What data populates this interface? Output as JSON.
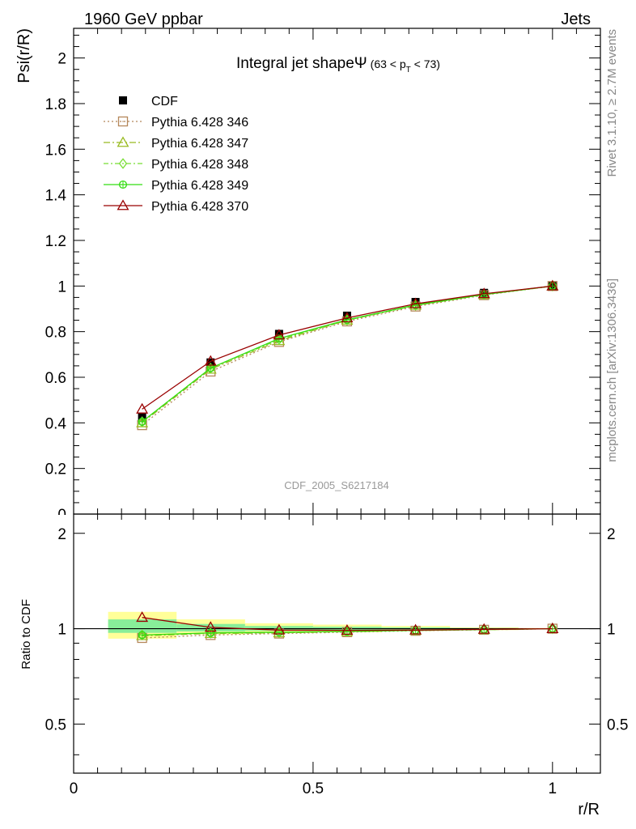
{
  "header": {
    "left": "1960 GeV ppbar",
    "right": "Jets"
  },
  "side_labels": {
    "rivet": "Rivet 3.1.10, ≥ 2.7M events",
    "mcplots": "mcplots.cern.ch [arXiv:1306.3436]"
  },
  "watermark": "CDF_2005_S6217184",
  "title": {
    "main": "Integral jet shape",
    "psi": "Ψ",
    "range_pre": "(63 < p",
    "range_sub": "T",
    "range_post": " < 73)"
  },
  "chart_data": [
    {
      "type": "line",
      "panel": "main",
      "ylabel": "Psi(r/R)",
      "xlim": [
        0,
        1.1
      ],
      "ylim": [
        0,
        2.13
      ],
      "yticks": [
        0,
        0.2,
        0.4,
        0.6,
        0.8,
        1,
        1.2,
        1.4,
        1.6,
        1.8,
        2
      ],
      "ytick_labels": [
        "0",
        "0.2",
        "0.4",
        "0.6",
        "0.8",
        "1",
        "1.2",
        "1.4",
        "1.6",
        "1.8",
        "2"
      ],
      "x": [
        0.143,
        0.286,
        0.429,
        0.571,
        0.714,
        0.857,
        1.0
      ],
      "series": [
        {
          "name": "CDF",
          "color": "#000000",
          "marker": "filled-square",
          "values": [
            0.425,
            0.665,
            0.79,
            0.87,
            0.93,
            0.97,
            1.0
          ]
        },
        {
          "name": "Pythia 6.428 346",
          "color": "#b5875a",
          "dash": "2,3",
          "marker": "open-square",
          "values": [
            0.39,
            0.625,
            0.755,
            0.845,
            0.91,
            0.96,
            1.0
          ]
        },
        {
          "name": "Pythia 6.428 347",
          "color": "#99bb22",
          "dash": "8,3,2,3",
          "marker": "open-triangle",
          "values": [
            0.4,
            0.635,
            0.76,
            0.85,
            0.915,
            0.962,
            1.0
          ]
        },
        {
          "name": "Pythia 6.428 348",
          "color": "#77dd33",
          "dash": "6,3,2,3",
          "marker": "open-diamond",
          "values": [
            0.405,
            0.64,
            0.765,
            0.85,
            0.915,
            0.962,
            1.0
          ]
        },
        {
          "name": "Pythia 6.428 349",
          "color": "#33dd11",
          "dash": "",
          "marker": "open-circle-cross",
          "values": [
            0.405,
            0.64,
            0.77,
            0.852,
            0.917,
            0.963,
            1.0
          ]
        },
        {
          "name": "Pythia 6.428 370",
          "color": "#990000",
          "dash": "",
          "marker": "open-triangle",
          "values": [
            0.46,
            0.67,
            0.785,
            0.86,
            0.922,
            0.966,
            1.0
          ]
        }
      ]
    },
    {
      "type": "line",
      "panel": "ratio",
      "ylabel": "Ratio to CDF",
      "xlabel": "r/R",
      "xlim": [
        0,
        1.1
      ],
      "ylim": [
        0.35,
        2.3
      ],
      "yticks": [
        0.5,
        1,
        2
      ],
      "ytick_labels": [
        "0.5",
        "1",
        "2"
      ],
      "xticks": [
        0,
        0.5,
        1
      ],
      "xtick_labels": [
        "0",
        "0.5",
        "1"
      ],
      "x": [
        0.143,
        0.286,
        0.429,
        0.571,
        0.714,
        0.857,
        1.0
      ],
      "bands": {
        "x_edges": [
          0.072,
          0.215,
          0.358,
          0.5,
          0.643,
          0.786,
          0.929,
          1.0
        ],
        "yellow": [
          [
            0.93,
            1.13
          ],
          [
            0.96,
            1.07
          ],
          [
            0.97,
            1.04
          ],
          [
            0.975,
            1.03
          ],
          [
            0.985,
            1.02
          ],
          [
            0.99,
            1.01
          ],
          [
            0.995,
            1.005
          ]
        ],
        "green": [
          [
            0.97,
            1.07
          ],
          [
            0.98,
            1.035
          ],
          [
            0.985,
            1.02
          ],
          [
            0.99,
            1.015
          ],
          [
            0.993,
            1.01
          ],
          [
            0.995,
            1.005
          ],
          [
            0.998,
            1.002
          ]
        ]
      },
      "series": [
        {
          "name": "Pythia 6.428 346",
          "color": "#b5875a",
          "dash": "2,3",
          "marker": "open-square",
          "values": [
            0.935,
            0.955,
            0.965,
            0.975,
            0.985,
            0.992,
            1.0
          ]
        },
        {
          "name": "Pythia 6.428 347",
          "color": "#99bb22",
          "dash": "8,3,2,3",
          "marker": "open-triangle",
          "values": [
            0.95,
            0.965,
            0.97,
            0.978,
            0.987,
            0.993,
            1.0
          ]
        },
        {
          "name": "Pythia 6.428 348",
          "color": "#77dd33",
          "dash": "6,3,2,3",
          "marker": "open-diamond",
          "values": [
            0.955,
            0.968,
            0.972,
            0.98,
            0.988,
            0.994,
            1.0
          ]
        },
        {
          "name": "Pythia 6.428 349",
          "color": "#33dd11",
          "dash": "",
          "marker": "open-circle-cross",
          "values": [
            0.955,
            0.97,
            0.975,
            0.98,
            0.988,
            0.994,
            1.0
          ]
        },
        {
          "name": "Pythia 6.428 370",
          "color": "#990000",
          "dash": "",
          "marker": "open-triangle",
          "values": [
            1.085,
            1.01,
            0.99,
            0.988,
            0.99,
            0.995,
            1.0
          ]
        }
      ]
    }
  ]
}
